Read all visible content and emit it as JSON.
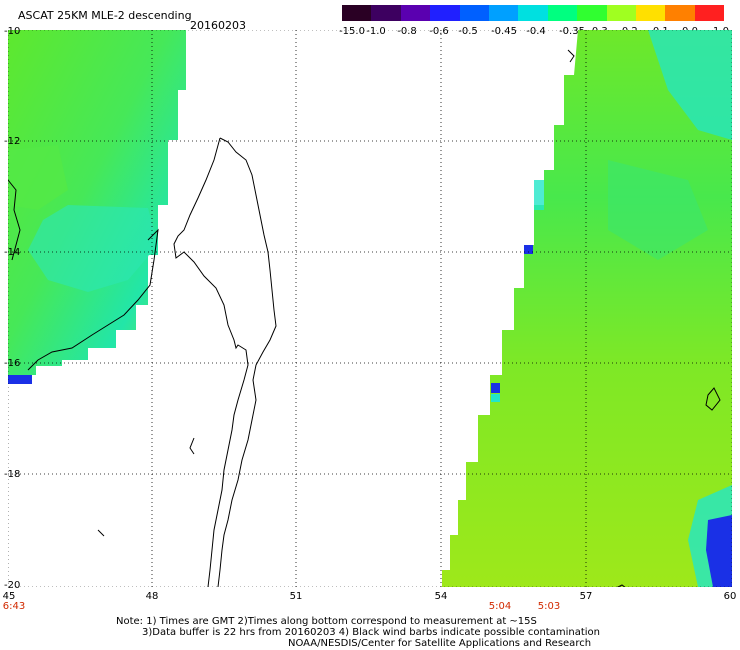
{
  "header": {
    "title": "ASCAT 25KM MLE-2 descending",
    "date": "20160203"
  },
  "colorbar": {
    "labels": [
      "-15.0",
      "-1.0",
      "-0.8",
      "-0.6",
      "-0.5",
      "-0.45",
      "-0.4",
      "-0.35",
      "-0.3",
      "-0.2",
      "-0.1",
      "0.0",
      "1.0"
    ],
    "colors": [
      "#2a0024",
      "#3d0060",
      "#5a00b0",
      "#2020ff",
      "#0060ff",
      "#00a0ff",
      "#00e0e0",
      "#00ff80",
      "#30ff30",
      "#a0ff20",
      "#ffe000",
      "#ff8000",
      "#ff2020"
    ]
  },
  "axes": {
    "lat_labels": [
      "-10",
      "-12",
      "-14",
      "-16",
      "-18",
      "-20"
    ],
    "lon_labels": [
      "45",
      "48",
      "51",
      "54",
      "57",
      "60"
    ],
    "time_labels": [
      "6:43",
      "5:04",
      "5:03"
    ]
  },
  "footer": {
    "line1": "Note: 1) Times are GMT 2)Times along bottom correspond to measurement at ~15S",
    "line2": "3)Data buffer is 22 hrs from 20160203 4) Black wind barbs indicate possible contamination",
    "line3": "NOAA/NESDIS/Center for Satellite Applications and Research"
  },
  "colors": {
    "field_green": "#5ee82e",
    "field_yellow_green": "#9ee81a",
    "field_cyan": "#22e6c8",
    "field_blue": "#1a30e6"
  }
}
